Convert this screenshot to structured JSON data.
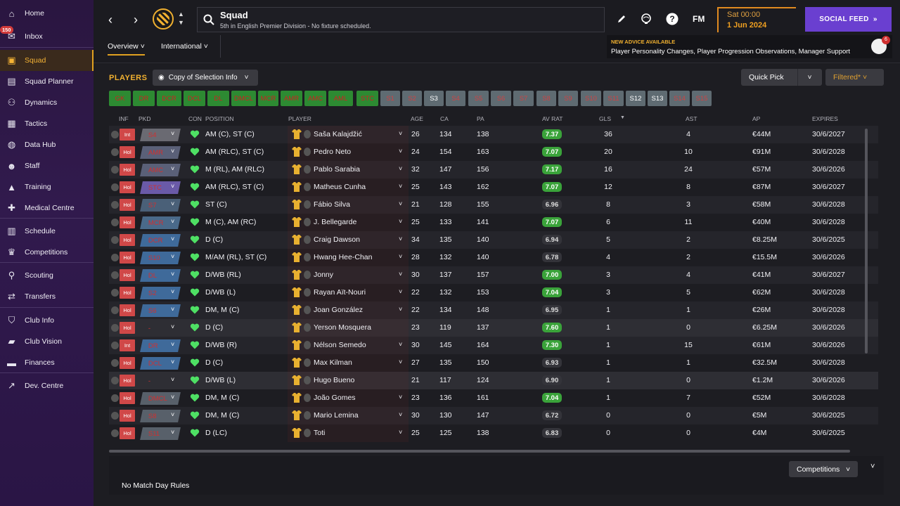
{
  "sidebar": {
    "inbox_badge": "150",
    "items": [
      {
        "label": "Home",
        "icon": "home-icon"
      },
      {
        "label": "Inbox",
        "icon": "inbox-icon"
      },
      {
        "label": "Squad",
        "icon": "shirt-icon"
      },
      {
        "label": "Squad Planner",
        "icon": "clipboard-icon"
      },
      {
        "label": "Dynamics",
        "icon": "people-icon"
      },
      {
        "label": "Tactics",
        "icon": "tactics-board-icon"
      },
      {
        "label": "Data Hub",
        "icon": "data-hub-icon"
      },
      {
        "label": "Staff",
        "icon": "staff-icon"
      },
      {
        "label": "Training",
        "icon": "cone-icon"
      },
      {
        "label": "Medical Centre",
        "icon": "medical-kit-icon"
      },
      {
        "label": "Schedule",
        "icon": "calendar-icon"
      },
      {
        "label": "Competitions",
        "icon": "trophy-icon"
      },
      {
        "label": "Scouting",
        "icon": "magnifier-icon"
      },
      {
        "label": "Transfers",
        "icon": "transfer-arrows-icon"
      },
      {
        "label": "Club Info",
        "icon": "shield-icon"
      },
      {
        "label": "Club Vision",
        "icon": "briefcase-icon"
      },
      {
        "label": "Finances",
        "icon": "money-icon"
      },
      {
        "label": "Dev. Centre",
        "icon": "dev-centre-icon"
      }
    ]
  },
  "header": {
    "title": "Squad",
    "subtitle": "5th in English Premier Division - No fixture scheduled.",
    "date_day": "Sat 00:00",
    "date": "1 Jun 2024",
    "fm_logo": "FM",
    "social_feed": "SOCIAL FEED",
    "advice_title": "NEW ADVICE AVAILABLE",
    "advice_text": "Player Personality Changes, Player Progression Observations, Manager Support",
    "advice_badge": "6",
    "tabs": [
      "Overview",
      "International"
    ]
  },
  "toolbar": {
    "players_title": "PLAYERS",
    "view_label": "Copy of Selection Info",
    "quick_pick": "Quick Pick",
    "filtered": "Filtered*"
  },
  "position_filters": [
    "GK",
    "DR",
    "DCR",
    "DCL",
    "DL",
    "DMCL",
    "MCR",
    "AMR",
    "AMC",
    "AML",
    "STC",
    "S1",
    "S2",
    "S3",
    "S4",
    "S5",
    "S6",
    "S7",
    "S8",
    "S9",
    "S10",
    "S11",
    "S12",
    "S13",
    "S14",
    "S15"
  ],
  "columns": [
    "INF",
    "PKD",
    "CON",
    "POSITION",
    "PLAYER",
    "AGE",
    "CA",
    "PA",
    "AV RAT",
    "GLS",
    "AST",
    "AP",
    "EXPIRES"
  ],
  "rows": [
    {
      "inf": "Int",
      "pkd": "S4",
      "position": "AM (C), ST (C)",
      "player": "Saša Kalajdžić",
      "age": "26",
      "ca": "134",
      "pa": "138",
      "rat": "7.37",
      "gls": "36",
      "ast": "4",
      "ap": "€44M",
      "expires": "30/6/2027"
    },
    {
      "inf": "Hol",
      "pkd": "AMR",
      "position": "AM (RLC), ST (C)",
      "player": "Pedro Neto",
      "age": "24",
      "ca": "154",
      "pa": "163",
      "rat": "7.07",
      "gls": "20",
      "ast": "10",
      "ap": "€91M",
      "expires": "30/6/2028"
    },
    {
      "inf": "Hol",
      "pkd": "AMC",
      "position": "M (RL), AM (RLC)",
      "player": "Pablo Sarabia",
      "age": "32",
      "ca": "147",
      "pa": "156",
      "rat": "7.17",
      "gls": "16",
      "ast": "24",
      "ap": "€57M",
      "expires": "30/6/2026"
    },
    {
      "inf": "Hol",
      "pkd": "STC",
      "position": "AM (RLC), ST (C)",
      "player": "Matheus Cunha",
      "age": "25",
      "ca": "143",
      "pa": "162",
      "rat": "7.07",
      "gls": "12",
      "ast": "8",
      "ap": "€87M",
      "expires": "30/6/2027"
    },
    {
      "inf": "Hol",
      "pkd": "S7",
      "position": "ST (C)",
      "player": "Fábio Silva",
      "age": "21",
      "ca": "128",
      "pa": "155",
      "rat": "6.96",
      "gls": "8",
      "ast": "3",
      "ap": "€58M",
      "expires": "30/6/2028"
    },
    {
      "inf": "Hol",
      "pkd": "MCR",
      "position": "M (C), AM (RC)",
      "player": "J. Bellegarde",
      "age": "25",
      "ca": "133",
      "pa": "141",
      "rat": "7.07",
      "gls": "6",
      "ast": "11",
      "ap": "€40M",
      "expires": "30/6/2028"
    },
    {
      "inf": "Hol",
      "pkd": "DCR",
      "position": "D (C)",
      "player": "Craig Dawson",
      "age": "34",
      "ca": "135",
      "pa": "140",
      "rat": "6.94",
      "gls": "5",
      "ast": "2",
      "ap": "€8.25M",
      "expires": "30/6/2025"
    },
    {
      "inf": "Hol",
      "pkd": "S10",
      "position": "M/AM (RL), ST (C)",
      "player": "Hwang Hee-Chan",
      "age": "28",
      "ca": "132",
      "pa": "140",
      "rat": "6.78",
      "gls": "4",
      "ast": "2",
      "ap": "€15.5M",
      "expires": "30/6/2026"
    },
    {
      "inf": "Hol",
      "pkd": "DL",
      "position": "D/WB (RL)",
      "player": "Jonny",
      "age": "30",
      "ca": "137",
      "pa": "157",
      "rat": "7.00",
      "gls": "3",
      "ast": "4",
      "ap": "€41M",
      "expires": "30/6/2027"
    },
    {
      "inf": "Hol",
      "pkd": "S2",
      "position": "D/WB (L)",
      "player": "Rayan Aït-Nouri",
      "age": "22",
      "ca": "132",
      "pa": "153",
      "rat": "7.04",
      "gls": "3",
      "ast": "5",
      "ap": "€62M",
      "expires": "30/6/2028"
    },
    {
      "inf": "Hol",
      "pkd": "S6",
      "position": "DM, M (C)",
      "player": "Joan González",
      "age": "22",
      "ca": "134",
      "pa": "148",
      "rat": "6.95",
      "gls": "1",
      "ast": "1",
      "ap": "€26M",
      "expires": "30/6/2028"
    },
    {
      "inf": "Hol",
      "pkd": "-",
      "position": "D (C)",
      "player": "Yerson Mosquera",
      "age": "23",
      "ca": "119",
      "pa": "137",
      "rat": "7.60",
      "gls": "1",
      "ast": "0",
      "ap": "€6.25M",
      "expires": "30/6/2026"
    },
    {
      "inf": "Int",
      "pkd": "DR",
      "position": "D/WB (R)",
      "player": "Nélson Semedo",
      "age": "30",
      "ca": "145",
      "pa": "164",
      "rat": "7.30",
      "gls": "1",
      "ast": "15",
      "ap": "€61M",
      "expires": "30/6/2026"
    },
    {
      "inf": "Hol",
      "pkd": "DCL",
      "position": "D (C)",
      "player": "Max Kilman",
      "age": "27",
      "ca": "135",
      "pa": "150",
      "rat": "6.93",
      "gls": "1",
      "ast": "1",
      "ap": "€32.5M",
      "expires": "30/6/2028"
    },
    {
      "inf": "Hol",
      "pkd": "-",
      "position": "D/WB (L)",
      "player": "Hugo Bueno",
      "age": "21",
      "ca": "117",
      "pa": "124",
      "rat": "6.90",
      "gls": "1",
      "ast": "0",
      "ap": "€1.2M",
      "expires": "30/6/2026"
    },
    {
      "inf": "Hol",
      "pkd": "DMCL",
      "position": "DM, M (C)",
      "player": "João Gomes",
      "age": "23",
      "ca": "136",
      "pa": "161",
      "rat": "7.04",
      "gls": "1",
      "ast": "7",
      "ap": "€52M",
      "expires": "30/6/2028"
    },
    {
      "inf": "Hol",
      "pkd": "S8",
      "position": "DM, M (C)",
      "player": "Mario Lemina",
      "age": "30",
      "ca": "130",
      "pa": "147",
      "rat": "6.72",
      "gls": "0",
      "ast": "0",
      "ap": "€5M",
      "expires": "30/6/2025"
    },
    {
      "inf": "Hol",
      "pkd": "S11",
      "position": "D (LC)",
      "player": "Toti",
      "age": "25",
      "ca": "125",
      "pa": "138",
      "rat": "6.83",
      "gls": "0",
      "ast": "0",
      "ap": "€4M",
      "expires": "30/6/2025"
    }
  ],
  "bottom": {
    "competitions": "Competitions",
    "no_rules": "No Match Day Rules"
  },
  "colors": {
    "accent": "#f0b030",
    "social": "#6a3fd0",
    "rating_good": "#3aa33a",
    "sidebar": "#311a4d"
  }
}
